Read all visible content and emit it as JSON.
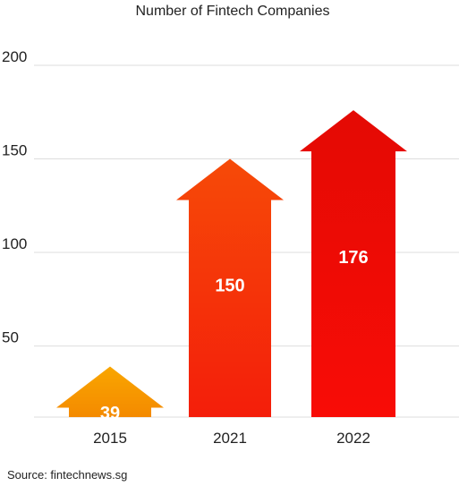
{
  "chart_data": {
    "type": "bar",
    "title": "Number of Fintech Companies",
    "categories": [
      "2015",
      "2021",
      "2022"
    ],
    "values": [
      39,
      150,
      176
    ],
    "yticks": [
      50,
      100,
      150,
      200
    ],
    "ylim": [
      12,
      200
    ],
    "grid": true,
    "xlabel": "",
    "ylabel": ""
  },
  "bar_colors": [
    {
      "top": "#f9a600",
      "bottom": "#f48a00"
    },
    {
      "top": "#f64a08",
      "bottom": "#f41e0a"
    },
    {
      "top": "#e40a04",
      "bottom": "#f80c06"
    }
  ],
  "source": "Source: fintechnews.sg"
}
